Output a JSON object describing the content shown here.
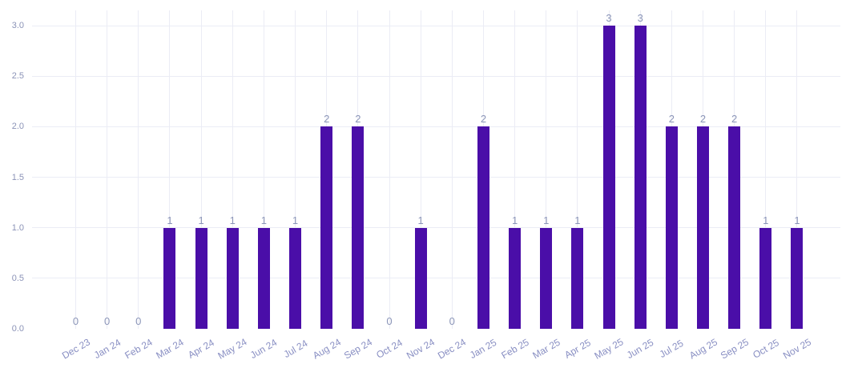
{
  "chart_data": {
    "type": "bar",
    "categories": [
      "Dec 23",
      "Jan 24",
      "Feb 24",
      "Mar 24",
      "Apr 24",
      "May 24",
      "Jun 24",
      "Jul 24",
      "Aug 24",
      "Sep 24",
      "Oct 24",
      "Nov 24",
      "Dec 24",
      "Jan 25",
      "Feb 25",
      "Mar 25",
      "Apr 25",
      "May 25",
      "Jun 25",
      "Jul 25",
      "Aug 25",
      "Sep 25",
      "Oct 25",
      "Nov 25"
    ],
    "values": [
      0,
      0,
      0,
      1,
      1,
      1,
      1,
      1,
      2,
      2,
      0,
      1,
      0,
      2,
      1,
      1,
      1,
      3,
      3,
      2,
      2,
      2,
      1,
      1
    ],
    "value_labels": [
      "0",
      "0",
      "0",
      "1",
      "1",
      "1",
      "1",
      "1",
      "2",
      "2",
      "0",
      "1",
      "0",
      "2",
      "1",
      "1",
      "1",
      "3",
      "3",
      "2",
      "2",
      "2",
      "1",
      "1"
    ],
    "title": "",
    "xlabel": "",
    "ylabel": "",
    "ylim": [
      0,
      3.0
    ],
    "yticks": [
      "0.0",
      "0.5",
      "1.0",
      "1.5",
      "2.0",
      "2.5",
      "3.0"
    ],
    "grid": true,
    "legend": false,
    "show_value_labels": true,
    "x_label_rotation_deg": -30
  },
  "colors": {
    "background": "#ffffff",
    "bar": "#4a0ea8",
    "grid_line": "#ebecf5",
    "y_tick_label": "#8b93b7",
    "x_tick_label": "#898fc3",
    "value_label": "#8b95b8"
  }
}
